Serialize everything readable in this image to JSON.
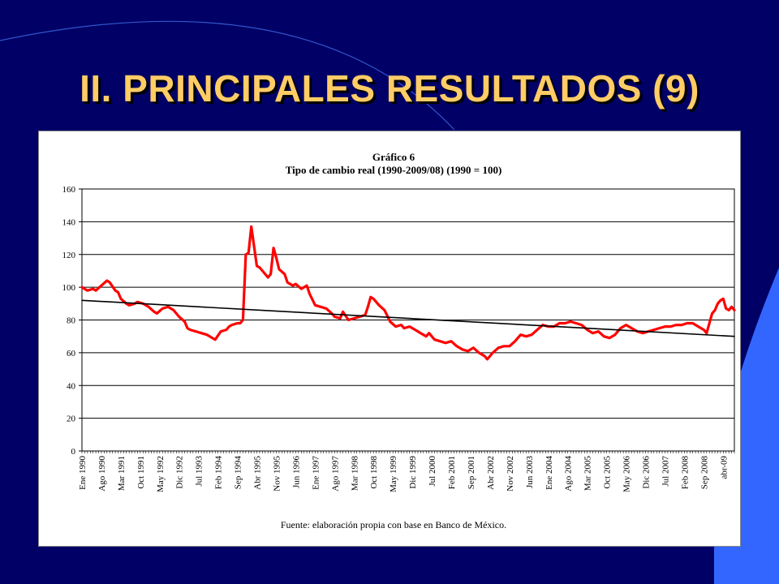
{
  "slide": {
    "title": "II. PRINCIPALES RESULTADOS (9)",
    "colors": {
      "background": "#000066",
      "title": "#FFCC66",
      "accent_shape": "#3366FF",
      "series": "#FF0000",
      "trend": "#000000"
    }
  },
  "chart_data": {
    "type": "line",
    "title": "Gráfico 6",
    "subtitle": "Tipo de cambio real (1990-2009/08) (1990 = 100)",
    "source": "Fuente: elaboración propia con base en Banco de México.",
    "xlabel": "",
    "ylabel": "",
    "ylim": [
      0,
      160
    ],
    "yticks": [
      0,
      20,
      40,
      60,
      80,
      100,
      120,
      140,
      160
    ],
    "grid": true,
    "legend": "none",
    "x_range": [
      "1990-01",
      "2009-08"
    ],
    "tick_labels": [
      {
        "date": "1990-01",
        "label": "Ene 1990"
      },
      {
        "date": "1990-08",
        "label": "Ago 1990"
      },
      {
        "date": "1991-03",
        "label": "Mar 1991"
      },
      {
        "date": "1991-10",
        "label": "Oct 1991"
      },
      {
        "date": "1992-05",
        "label": "May 1992"
      },
      {
        "date": "1992-12",
        "label": "Dic 1992"
      },
      {
        "date": "1993-07",
        "label": "Jul 1993"
      },
      {
        "date": "1994-02",
        "label": "Feb 1994"
      },
      {
        "date": "1994-09",
        "label": "Sep 1994"
      },
      {
        "date": "1995-04",
        "label": "Abr 1995"
      },
      {
        "date": "1995-11",
        "label": "Nov 1995"
      },
      {
        "date": "1996-06",
        "label": "Jun 1996"
      },
      {
        "date": "1997-01",
        "label": "Ene 1997"
      },
      {
        "date": "1997-08",
        "label": "Ago 1997"
      },
      {
        "date": "1998-03",
        "label": "Mar 1998"
      },
      {
        "date": "1998-10",
        "label": "Oct 1998"
      },
      {
        "date": "1999-05",
        "label": "May 1999"
      },
      {
        "date": "1999-12",
        "label": "Dic 1999"
      },
      {
        "date": "2000-07",
        "label": "Jul 2000"
      },
      {
        "date": "2001-02",
        "label": "Feb 2001"
      },
      {
        "date": "2001-09",
        "label": "Sep 2001"
      },
      {
        "date": "2002-04",
        "label": "Abr 2002"
      },
      {
        "date": "2002-11",
        "label": "Nov 2002"
      },
      {
        "date": "2003-06",
        "label": "Jun 2003"
      },
      {
        "date": "2004-01",
        "label": "Ene 2004"
      },
      {
        "date": "2004-08",
        "label": "Ago 2004"
      },
      {
        "date": "2005-03",
        "label": "Mar 2005"
      },
      {
        "date": "2005-10",
        "label": "Oct 2005"
      },
      {
        "date": "2006-05",
        "label": "May 2006"
      },
      {
        "date": "2006-12",
        "label": "Dic 2006"
      },
      {
        "date": "2007-07",
        "label": "Jul 2007"
      },
      {
        "date": "2008-02",
        "label": "Feb 2008"
      },
      {
        "date": "2008-09",
        "label": "Sep 2008"
      },
      {
        "date": "2009-04",
        "label": "abr-09"
      }
    ],
    "series": [
      {
        "values": [
          [
            "1990-01",
            100
          ],
          [
            "1990-03",
            98
          ],
          [
            "1990-05",
            99
          ],
          [
            "1990-06",
            98
          ],
          [
            "1990-08",
            101
          ],
          [
            "1990-10",
            104
          ],
          [
            "1990-11",
            103
          ],
          [
            "1991-01",
            98
          ],
          [
            "1991-02",
            97
          ],
          [
            "1991-03",
            93
          ],
          [
            "1991-05",
            90
          ],
          [
            "1991-06",
            89
          ],
          [
            "1991-08",
            90
          ],
          [
            "1991-09",
            91
          ],
          [
            "1991-11",
            90
          ],
          [
            "1992-01",
            88
          ],
          [
            "1992-03",
            85
          ],
          [
            "1992-04",
            84
          ],
          [
            "1992-06",
            87
          ],
          [
            "1992-08",
            88
          ],
          [
            "1992-10",
            86
          ],
          [
            "1992-12",
            82
          ],
          [
            "1993-02",
            79
          ],
          [
            "1993-03",
            75
          ],
          [
            "1993-04",
            74
          ],
          [
            "1993-06",
            73
          ],
          [
            "1993-08",
            72
          ],
          [
            "1993-10",
            71
          ],
          [
            "1993-12",
            69
          ],
          [
            "1994-01",
            68
          ],
          [
            "1994-03",
            73
          ],
          [
            "1994-05",
            74
          ],
          [
            "1994-06",
            76
          ],
          [
            "1994-07",
            77
          ],
          [
            "1994-09",
            78
          ],
          [
            "1994-10",
            78
          ],
          [
            "1994-11",
            80
          ],
          [
            "1994-12",
            120
          ],
          [
            "1995-01",
            121
          ],
          [
            "1995-02",
            137
          ],
          [
            "1995-03",
            125
          ],
          [
            "1995-04",
            113
          ],
          [
            "1995-05",
            112
          ],
          [
            "1995-06",
            110
          ],
          [
            "1995-08",
            106
          ],
          [
            "1995-09",
            108
          ],
          [
            "1995-10",
            124
          ],
          [
            "1995-11",
            118
          ],
          [
            "1995-12",
            111
          ],
          [
            "1996-02",
            108
          ],
          [
            "1996-03",
            103
          ],
          [
            "1996-05",
            101
          ],
          [
            "1996-06",
            102
          ],
          [
            "1996-08",
            99
          ],
          [
            "1996-10",
            101
          ],
          [
            "1996-11",
            96
          ],
          [
            "1997-01",
            89
          ],
          [
            "1997-03",
            88
          ],
          [
            "1997-05",
            87
          ],
          [
            "1997-07",
            84
          ],
          [
            "1997-08",
            82
          ],
          [
            "1997-10",
            81
          ],
          [
            "1997-11",
            85
          ],
          [
            "1998-01",
            80
          ],
          [
            "1998-03",
            81
          ],
          [
            "1998-05",
            82
          ],
          [
            "1998-07",
            83
          ],
          [
            "1998-08",
            88
          ],
          [
            "1998-09",
            94
          ],
          [
            "1998-10",
            93
          ],
          [
            "1998-12",
            89
          ],
          [
            "1999-02",
            86
          ],
          [
            "1999-04",
            79
          ],
          [
            "1999-06",
            76
          ],
          [
            "1999-08",
            77
          ],
          [
            "1999-09",
            75
          ],
          [
            "1999-11",
            76
          ],
          [
            "2000-01",
            74
          ],
          [
            "2000-03",
            72
          ],
          [
            "2000-05",
            70
          ],
          [
            "2000-06",
            72
          ],
          [
            "2000-08",
            68
          ],
          [
            "2000-10",
            67
          ],
          [
            "2000-12",
            66
          ],
          [
            "2001-02",
            67
          ],
          [
            "2001-04",
            64
          ],
          [
            "2001-06",
            62
          ],
          [
            "2001-08",
            61
          ],
          [
            "2001-10",
            63
          ],
          [
            "2001-12",
            60
          ],
          [
            "2002-02",
            58
          ],
          [
            "2002-03",
            56
          ],
          [
            "2002-05",
            60
          ],
          [
            "2002-07",
            63
          ],
          [
            "2002-09",
            64
          ],
          [
            "2002-11",
            64
          ],
          [
            "2003-01",
            67
          ],
          [
            "2003-03",
            71
          ],
          [
            "2003-05",
            70
          ],
          [
            "2003-07",
            71
          ],
          [
            "2003-09",
            74
          ],
          [
            "2003-11",
            77
          ],
          [
            "2004-01",
            76
          ],
          [
            "2004-03",
            76
          ],
          [
            "2004-05",
            78
          ],
          [
            "2004-07",
            78
          ],
          [
            "2004-09",
            79
          ],
          [
            "2004-11",
            78
          ],
          [
            "2005-01",
            77
          ],
          [
            "2005-03",
            74
          ],
          [
            "2005-05",
            72
          ],
          [
            "2005-07",
            73
          ],
          [
            "2005-09",
            70
          ],
          [
            "2005-11",
            69
          ],
          [
            "2006-01",
            71
          ],
          [
            "2006-03",
            75
          ],
          [
            "2006-05",
            77
          ],
          [
            "2006-07",
            75
          ],
          [
            "2006-09",
            73
          ],
          [
            "2006-11",
            72
          ],
          [
            "2007-01",
            73
          ],
          [
            "2007-03",
            74
          ],
          [
            "2007-05",
            75
          ],
          [
            "2007-07",
            76
          ],
          [
            "2007-09",
            76
          ],
          [
            "2007-11",
            77
          ],
          [
            "2008-01",
            77
          ],
          [
            "2008-03",
            78
          ],
          [
            "2008-05",
            78
          ],
          [
            "2008-07",
            76
          ],
          [
            "2008-09",
            74
          ],
          [
            "2008-10",
            72
          ],
          [
            "2008-11",
            78
          ],
          [
            "2008-12",
            84
          ],
          [
            "2009-01",
            86
          ],
          [
            "2009-02",
            90
          ],
          [
            "2009-03",
            92
          ],
          [
            "2009-04",
            93
          ],
          [
            "2009-05",
            87
          ],
          [
            "2009-06",
            86
          ],
          [
            "2009-07",
            88
          ],
          [
            "2009-08",
            86
          ]
        ]
      },
      {
        "type": "trendline",
        "values": [
          [
            "1990-01",
            92
          ],
          [
            "2009-08",
            70
          ]
        ]
      }
    ]
  }
}
